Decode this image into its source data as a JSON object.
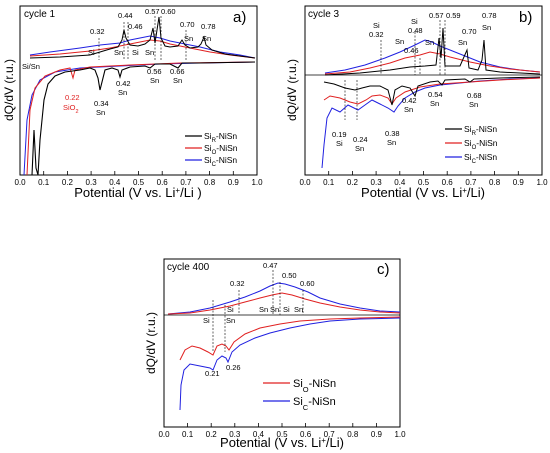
{
  "chart_data": [
    {
      "id": "a",
      "type": "line",
      "title": "cycle 1",
      "panel_label": "a)",
      "xlabel": "Potential (V vs. Li+/Li )",
      "ylabel": "dQ/dV (r.u.)",
      "xlim": [
        0.0,
        1.0
      ],
      "xticks": [
        "0.0",
        "0.1",
        "0.2",
        "0.3",
        "0.4",
        "0.5",
        "0.6",
        "0.7",
        "0.8",
        "0.9",
        "1.0"
      ],
      "legend": "bottom-right",
      "series": [
        {
          "name": "SiR-NiSn",
          "color": "#000000",
          "x": [
            0.05,
            0.06,
            0.065,
            0.07,
            0.075,
            0.08,
            0.085,
            0.09,
            0.1,
            0.15,
            0.2,
            0.25,
            0.3,
            0.32,
            0.34,
            0.36,
            0.4,
            0.42,
            0.44,
            0.5,
            0.54,
            0.56,
            0.58,
            0.62,
            0.66,
            0.7,
            0.8,
            0.9,
            1.0
          ],
          "y": [
            -0.8,
            -0.95,
            -0.1,
            -0.05,
            -0.85,
            -0.95,
            -0.6,
            0.02,
            0.02,
            0.02,
            0.03,
            0.03,
            0.0,
            -0.05,
            -0.22,
            -0.04,
            -0.02,
            -0.1,
            0.0,
            0.0,
            0.0,
            0.0,
            0.0,
            -0.02,
            -0.05,
            0.0,
            0.0,
            0.0,
            0.0
          ],
          "y_charge": [
            0.12,
            0.12,
            0.13,
            0.13,
            0.13,
            0.13,
            0.14,
            0.15,
            0.16,
            0.18,
            0.2,
            0.23,
            0.24,
            0.26,
            0.28,
            0.29,
            0.34,
            0.38,
            0.5,
            0.34,
            0.36,
            0.4,
            0.6,
            0.34,
            0.3,
            0.26,
            0.2,
            0.14,
            0.1
          ],
          "extra": {
            "charge_peaks": [
              0.44,
              0.46,
              0.57,
              0.6,
              0.7,
              0.78
            ]
          }
        },
        {
          "name": "SiO-NiSn",
          "color": "#e02020",
          "x": [
            0.02,
            0.05,
            0.1,
            0.15,
            0.2,
            0.22,
            0.25,
            0.3,
            0.4,
            0.5,
            0.6,
            0.7,
            0.8,
            0.9,
            1.0
          ],
          "y": [
            -0.9,
            -0.3,
            -0.1,
            -0.05,
            -0.05,
            -0.2,
            -0.05,
            -0.05,
            -0.03,
            -0.02,
            -0.02,
            -0.01,
            0.0,
            0.0,
            0.0
          ]
        },
        {
          "name": "SiC-NiSn",
          "color": "#2020e0",
          "x": [
            0.02,
            0.05,
            0.1,
            0.2,
            0.3,
            0.4,
            0.5,
            0.6,
            0.7,
            0.8,
            0.9,
            1.0
          ],
          "y": [
            -0.9,
            -0.2,
            -0.08,
            -0.04,
            -0.02,
            -0.01,
            -0.01,
            0.0,
            0.0,
            0.0,
            0.0,
            0.0
          ]
        }
      ],
      "annotations": [
        {
          "text": "0.32",
          "x": 0.32,
          "pos": "top"
        },
        {
          "text": "0.44",
          "x": 0.44,
          "pos": "top"
        },
        {
          "text": "0.46",
          "x": 0.46,
          "pos": "top"
        },
        {
          "text": "0.57",
          "x": 0.57,
          "pos": "top"
        },
        {
          "text": "0.60",
          "x": 0.6,
          "pos": "top"
        },
        {
          "text": "0.70",
          "x": 0.7,
          "pos": "top"
        },
        {
          "text": "0.78",
          "x": 0.78,
          "pos": "top"
        },
        {
          "text": "Si",
          "x": 0.29,
          "pos": "top"
        },
        {
          "text": "Sn",
          "x": 0.42,
          "pos": "top"
        },
        {
          "text": "Si",
          "x": 0.47,
          "pos": "top"
        },
        {
          "text": "Sn",
          "x": 0.55,
          "pos": "top"
        },
        {
          "text": "Sn",
          "x": 0.7,
          "pos": "top"
        },
        {
          "text": "Sn",
          "x": 0.78,
          "pos": "top"
        },
        {
          "text": "Si/Sn",
          "x": 0.03,
          "pos": "bottom"
        },
        {
          "text": "0.22",
          "x": 0.22,
          "pos": "bottom",
          "color": "#e02020"
        },
        {
          "text": "SiO2",
          "x": 0.22,
          "pos": "bottom",
          "color": "#e02020"
        },
        {
          "text": "0.34",
          "x": 0.34,
          "pos": "bottom"
        },
        {
          "text": "Sn",
          "x": 0.34,
          "pos": "bottom"
        },
        {
          "text": "0.42",
          "x": 0.42,
          "pos": "bottom"
        },
        {
          "text": "Sn",
          "x": 0.42,
          "pos": "bottom"
        },
        {
          "text": "0.56",
          "x": 0.56,
          "pos": "bottom"
        },
        {
          "text": "Sn",
          "x": 0.56,
          "pos": "bottom"
        },
        {
          "text": "0.66",
          "x": 0.66,
          "pos": "bottom"
        },
        {
          "text": "Sn",
          "x": 0.66,
          "pos": "bottom"
        }
      ]
    },
    {
      "id": "b",
      "type": "line",
      "title": "cycle 3",
      "panel_label": "b)",
      "xlabel": "Potential (V vs. Li+/Li)",
      "ylabel": "dQ/dV (r.u.)",
      "xlim": [
        0.0,
        1.0
      ],
      "xticks": [
        "0.0",
        "0.1",
        "0.2",
        "0.3",
        "0.4",
        "0.5",
        "0.6",
        "0.7",
        "0.8",
        "0.9",
        "1.0"
      ],
      "legend": "bottom-right",
      "series": [
        {
          "name": "SiR-NiSn",
          "color": "#000000"
        },
        {
          "name": "SiO-NiSn",
          "color": "#e02020"
        },
        {
          "name": "SiC-NiSn",
          "color": "#2020e0"
        }
      ],
      "annotations": [
        {
          "text": "Si",
          "x": 0.32
        },
        {
          "text": "0.32",
          "x": 0.32
        },
        {
          "text": "Si",
          "x": 0.48
        },
        {
          "text": "0.48",
          "x": 0.48
        },
        {
          "text": "Sn",
          "x": 0.42
        },
        {
          "text": "0.46",
          "x": 0.46
        },
        {
          "text": "0.57",
          "x": 0.57
        },
        {
          "text": "0.59",
          "x": 0.59
        },
        {
          "text": "Sn",
          "x": 0.58
        },
        {
          "text": "0.70",
          "x": 0.7
        },
        {
          "text": "Sn",
          "x": 0.7
        },
        {
          "text": "0.78",
          "x": 0.78
        },
        {
          "text": "Sn",
          "x": 0.78
        },
        {
          "text": "0.19",
          "x": 0.19
        },
        {
          "text": "Si",
          "x": 0.19
        },
        {
          "text": "0.24",
          "x": 0.24
        },
        {
          "text": "Sn",
          "x": 0.24
        },
        {
          "text": "0.38",
          "x": 0.38
        },
        {
          "text": "Sn",
          "x": 0.38
        },
        {
          "text": "0.42",
          "x": 0.42
        },
        {
          "text": "Sn",
          "x": 0.42
        },
        {
          "text": "0.54",
          "x": 0.54
        },
        {
          "text": "Sn",
          "x": 0.54
        },
        {
          "text": "0.68",
          "x": 0.68
        },
        {
          "text": "Sn",
          "x": 0.68
        }
      ]
    },
    {
      "id": "c",
      "type": "line",
      "title": "cycle 400",
      "panel_label": "c)",
      "xlabel": "Potential (V vs. Li+/Li)",
      "ylabel": "dQ/dV (r.u.)",
      "xlim": [
        0.0,
        1.0
      ],
      "xticks": [
        "0.0",
        "0.1",
        "0.2",
        "0.3",
        "0.4",
        "0.5",
        "0.6",
        "0.7",
        "0.8",
        "0.9",
        "1.0"
      ],
      "legend": "bottom-center",
      "series": [
        {
          "name": "SiO-NiSn",
          "color": "#e02020"
        },
        {
          "name": "SiC-NiSn",
          "color": "#2020e0"
        }
      ],
      "annotations": [
        {
          "text": "0.32",
          "x": 0.32
        },
        {
          "text": "0.47",
          "x": 0.47
        },
        {
          "text": "0.50",
          "x": 0.5
        },
        {
          "text": "0.60",
          "x": 0.6
        },
        {
          "text": "Si",
          "x": 0.22
        },
        {
          "text": "Sn",
          "x": 0.38
        },
        {
          "text": "Sn",
          "x": 0.44
        },
        {
          "text": "Si",
          "x": 0.51
        },
        {
          "text": "Sn",
          "x": 0.56
        },
        {
          "text": "Si",
          "x": 0.21
        },
        {
          "text": "Sn",
          "x": 0.26
        },
        {
          "text": "0.21",
          "x": 0.21
        },
        {
          "text": "0.26",
          "x": 0.26
        }
      ]
    }
  ],
  "labels": {
    "a_title": "cycle 1",
    "a_panel": "a)",
    "b_title": "cycle 3",
    "b_panel": "b)",
    "c_title": "cycle 400",
    "c_panel": "c)",
    "ylabel": "dQ/dV (r.u.)",
    "xlabel_a_pre": "Potential (V vs. Li",
    "xlabel_a_post": "/Li )",
    "xlabel_b_pre": "Potential (V vs. Li",
    "xlabel_b_post": "/Li)",
    "sup_plus": "+",
    "leg_r": "Si",
    "leg_r_sub": "R",
    "leg_o_sub": "O",
    "leg_c_sub": "C",
    "leg_suffix": "-NiSn"
  }
}
